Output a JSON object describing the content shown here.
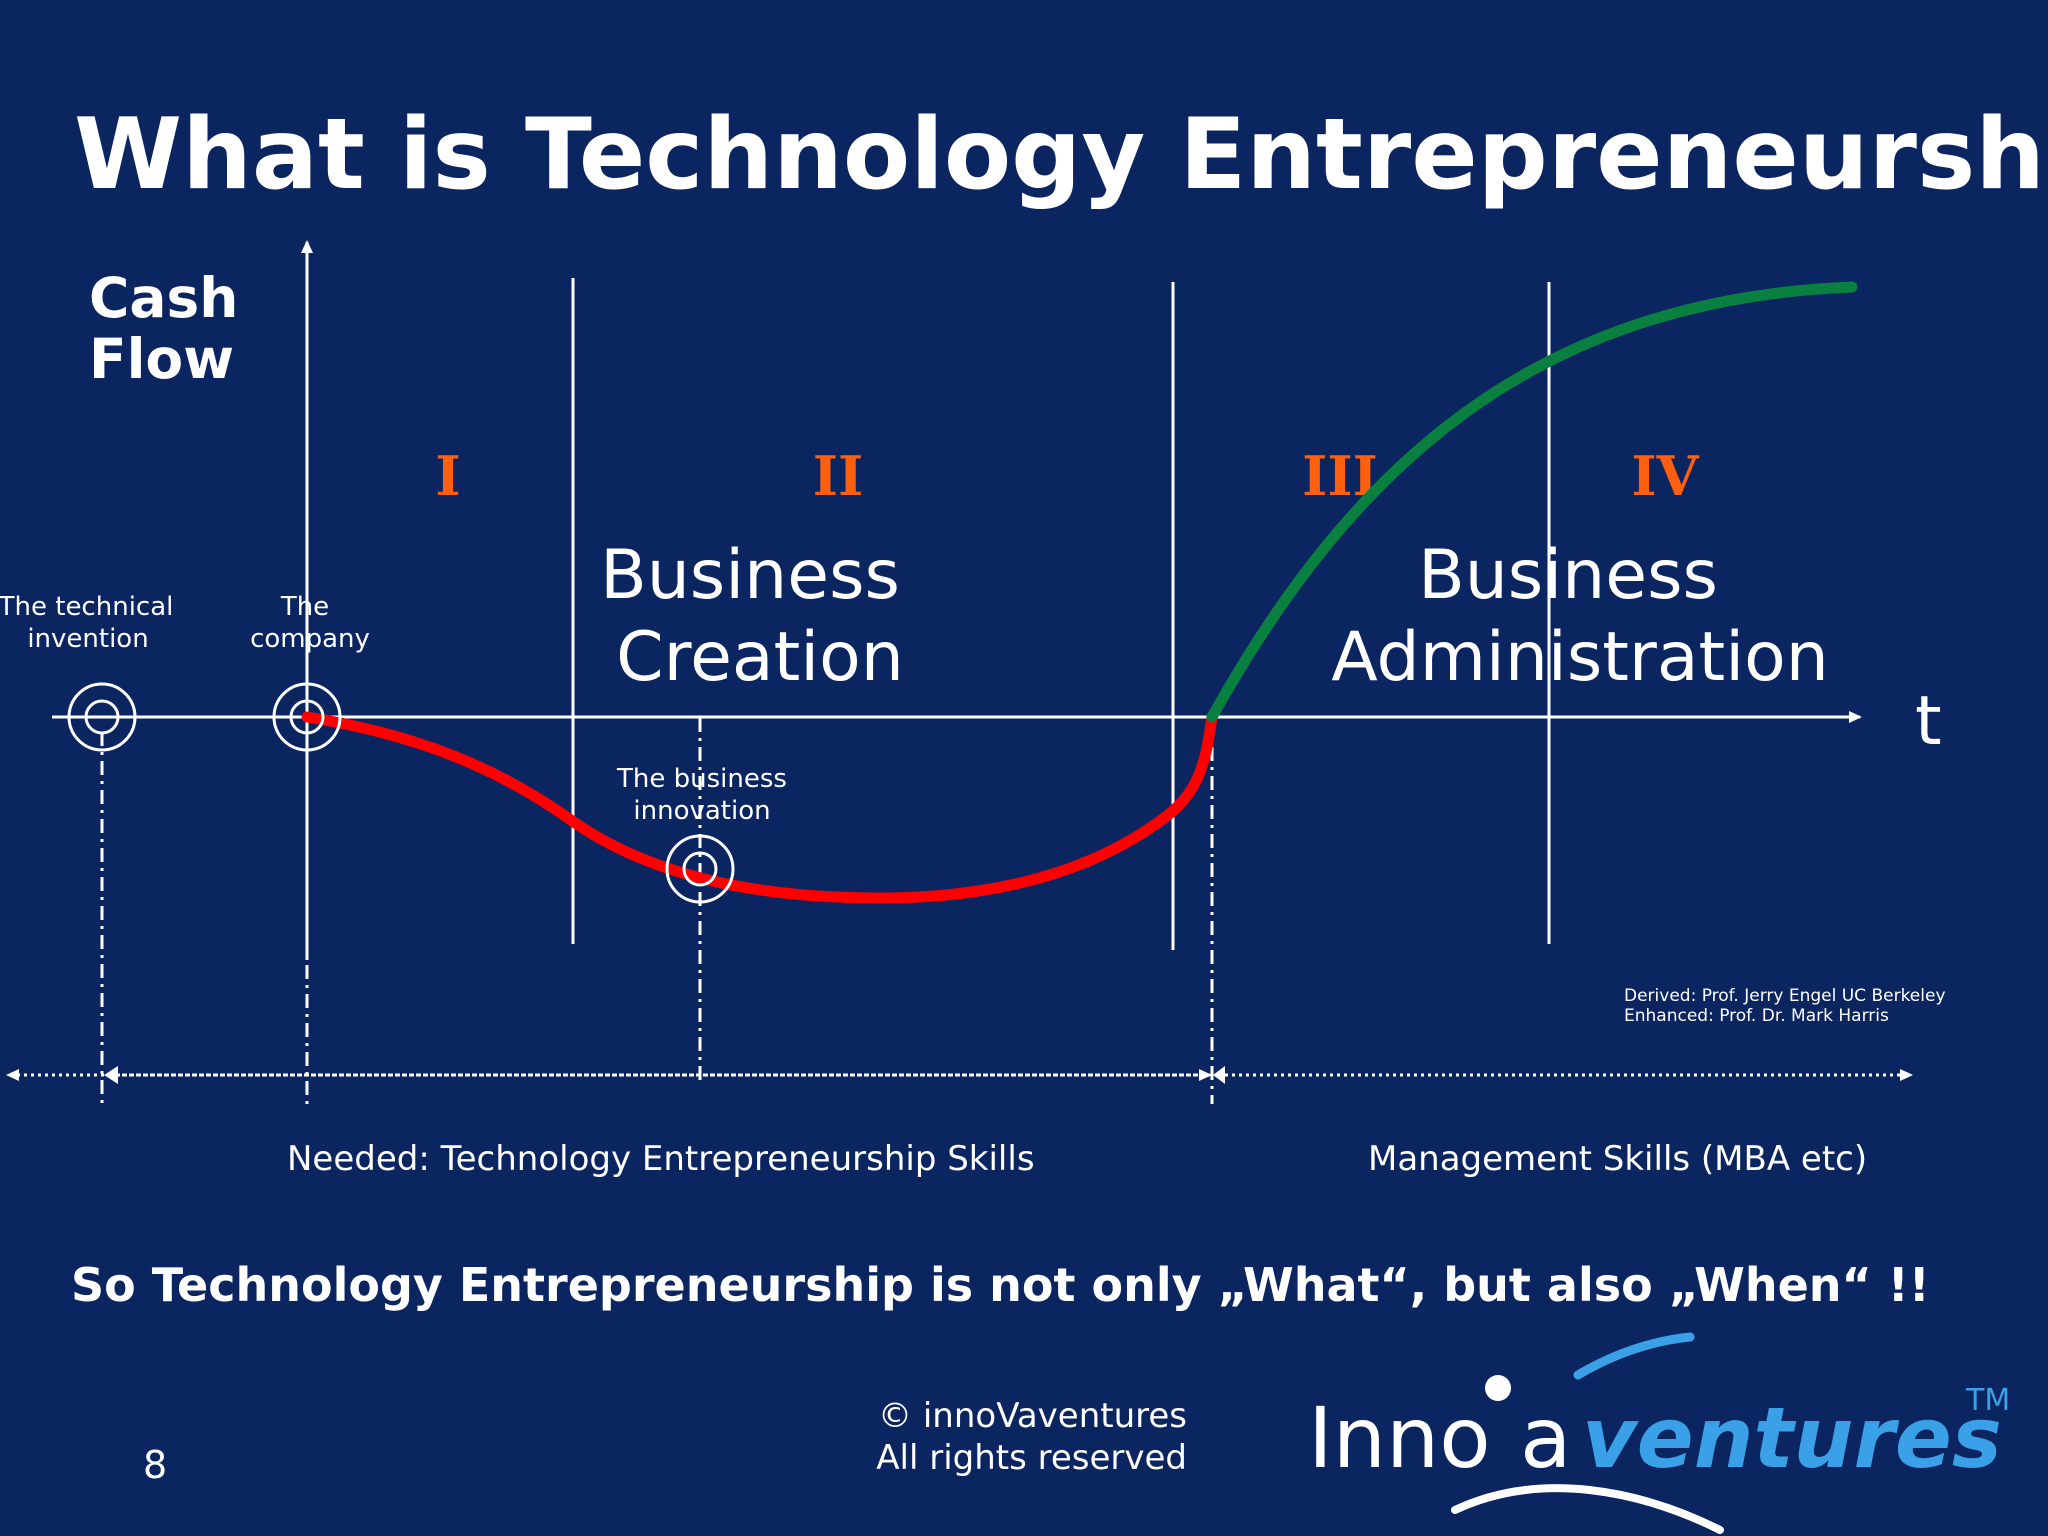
{
  "slide": {
    "title": "What is Technology Entrepreneurship ?",
    "y_axis_label_line1": "Cash",
    "y_axis_label_line2": "Flow",
    "x_axis_label": "t",
    "phases": [
      "I",
      "II",
      "III",
      "IV"
    ],
    "business_creation_line1": "Business",
    "business_creation_line2": "Creation",
    "business_admin_line1": "Business",
    "business_admin_line2": "Administration",
    "milestones": {
      "invention_line1": "The technical",
      "invention_line2": "invention",
      "company_line1": "The",
      "company_line2": "company",
      "innovation_line1": "The business",
      "innovation_line2": "innovation"
    },
    "credits": {
      "derived": "Derived: Prof. Jerry Engel UC Berkeley",
      "enhanced": "Enhanced: Prof. Dr. Mark Harris"
    },
    "skills_left": "Needed: Technology Entrepreneurship Skills",
    "skills_right": "Management Skills (MBA etc)",
    "conclusion": "So Technology Entrepreneurship is not only „What“, but also „When“ !!",
    "copyright_line1": "© innoVaventures",
    "copyright_line2": "All rights reserved",
    "page_number": "8",
    "logo": {
      "part1": "Inno",
      "part2": "a",
      "part3": "ventures",
      "tm": "TM"
    }
  },
  "colors": {
    "background": "#0b2560",
    "phase_numbers": "#ff6010",
    "negative_curve": "#ff0000",
    "positive_curve": "#0a8040",
    "logo_accent": "#3aa0e8"
  }
}
